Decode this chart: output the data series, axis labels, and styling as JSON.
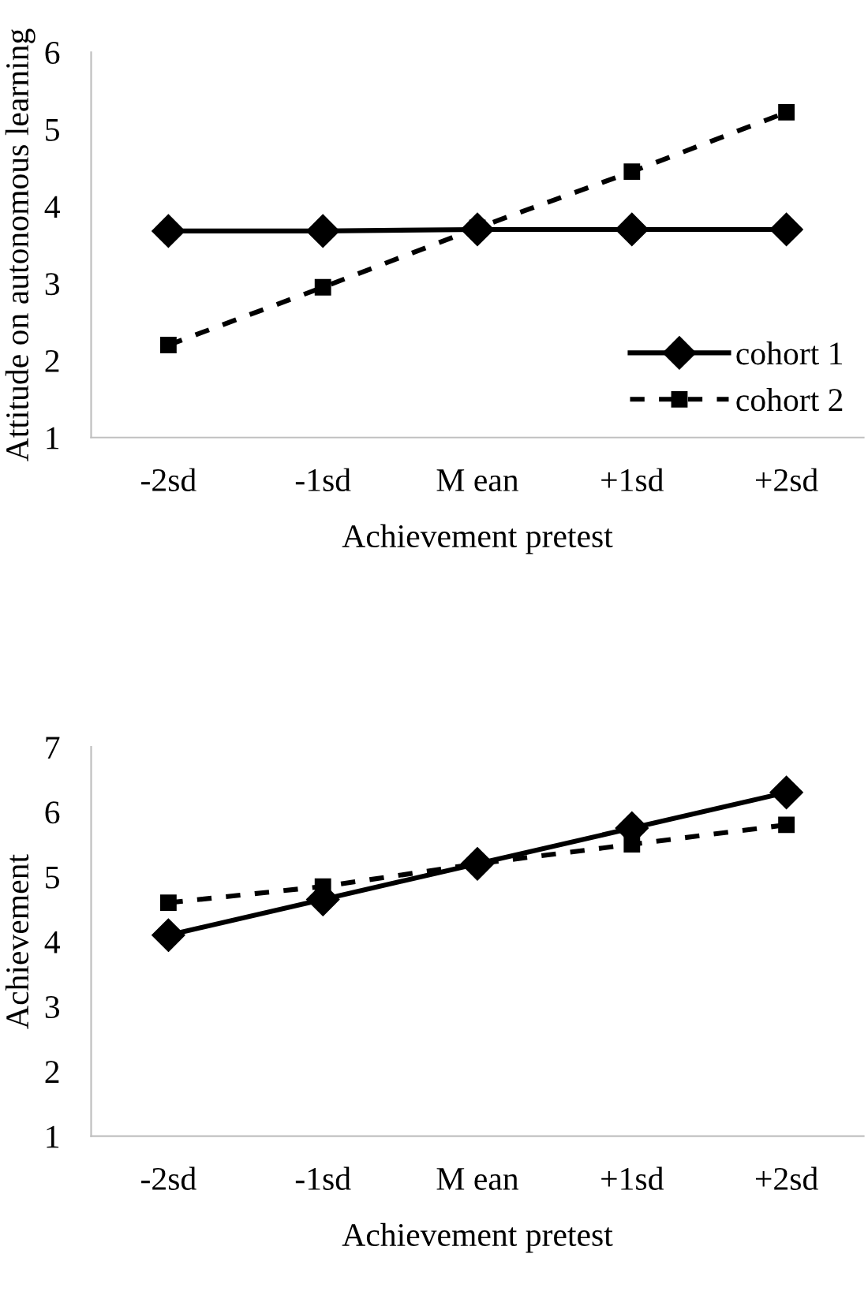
{
  "chart_data": [
    {
      "type": "line",
      "xlabel": "Achievement pretest",
      "ylabel": "Attitude on autonomous learning",
      "categories": [
        "-2sd",
        "-1sd",
        "M ean",
        "+1sd",
        "+2sd"
      ],
      "ylim": [
        1,
        6
      ],
      "yticks": [
        1,
        2,
        3,
        4,
        5,
        6
      ],
      "grid": false,
      "legend": "bottom right",
      "series": [
        {
          "name": "cohort 1",
          "color": "#000000",
          "values": [
            3.68,
            3.68,
            3.7,
            3.7,
            3.7
          ],
          "marker": "diamond",
          "line_style": "solid"
        },
        {
          "name": "cohort 2",
          "color": "#000000",
          "values": [
            2.2,
            2.95,
            3.72,
            4.45,
            5.22
          ],
          "marker": "square",
          "line_style": "dashed"
        }
      ]
    },
    {
      "type": "line",
      "xlabel": "Achievement pretest",
      "ylabel": "Achievement",
      "categories": [
        "-2sd",
        "-1sd",
        "M ean",
        "+1sd",
        "+2sd"
      ],
      "ylim": [
        1,
        7
      ],
      "yticks": [
        1,
        2,
        3,
        4,
        5,
        6,
        7
      ],
      "grid": false,
      "legend": false,
      "series": [
        {
          "color": "#000000",
          "values": [
            4.1,
            4.65,
            5.2,
            5.75,
            6.3
          ],
          "marker": "diamond",
          "line_style": "solid"
        },
        {
          "color": "#000000",
          "values": [
            4.6,
            4.85,
            5.2,
            5.5,
            5.8
          ],
          "marker": "square",
          "line_style": "dashed"
        }
      ]
    }
  ]
}
